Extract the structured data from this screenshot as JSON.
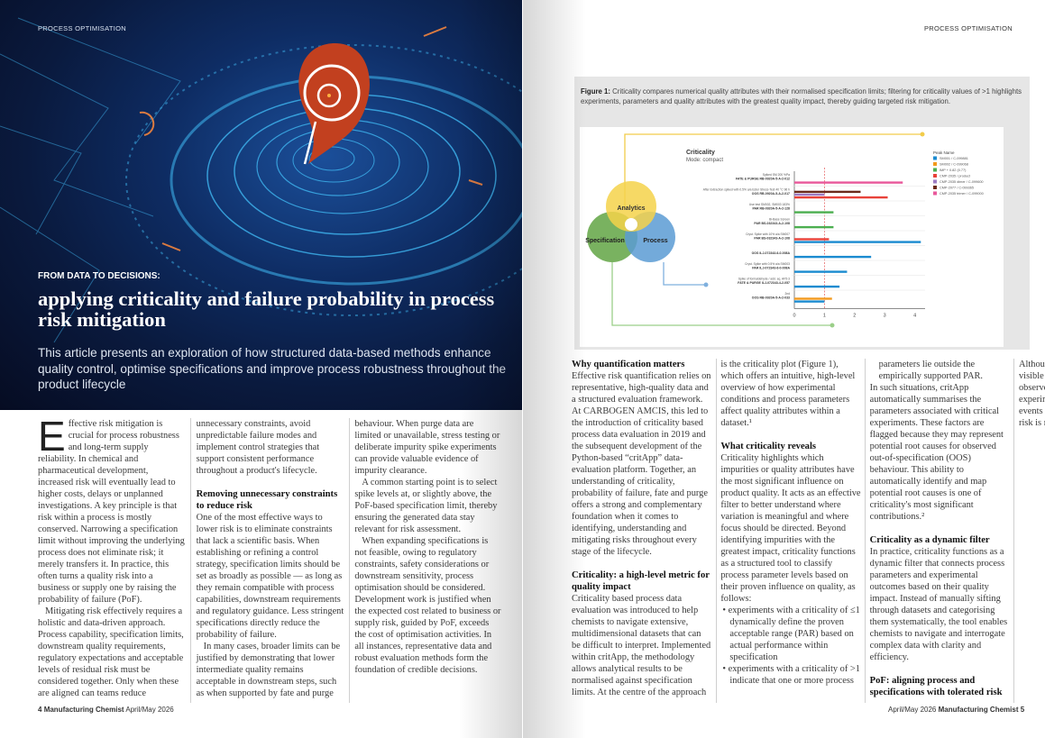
{
  "left_page": {
    "section": "PROCESS OPTIMISATION",
    "kicker": "FROM DATA TO DECISIONS:",
    "title": "applying criticality and failure probability in process risk mitigation",
    "standfirst": "This article presents an exploration of how structured data-based methods enhance quality control, optimise specifications and improve process robustness throughout the product lifecycle",
    "drop_cap": "E",
    "blocks": [
      {
        "t": "p",
        "text": "ffective risk mitigation is crucial for process robustness and long-term supply reliability. In chemical and pharmaceutical development, increased risk will eventually lead to higher costs, delays or unplanned investigations. A key principle is that risk within a process is mostly conserved. Narrowing a specification limit without improving the underlying process does not eliminate risk; it merely transfers it. In practice, this often turns a quality risk into a business or supply one by raising the probability of failure (PoF)."
      },
      {
        "t": "p",
        "text": "Mitigating risk effectively requires a holistic and data-driven approach. Process capability, specification limits, downstream quality requirements, regulatory expectations and acceptable levels of residual risk must be considered together. Only when these are aligned can teams reduce unnecessary constraints, avoid unpredictable failure modes and implement control strategies that support consistent performance throughout a product's lifecycle."
      },
      {
        "t": "h",
        "text": "Removing unnecessary constraints to reduce risk"
      },
      {
        "t": "p",
        "text": "One of the most effective ways to lower risk is to eliminate constraints that lack a scientific basis. When establishing or refining a control strategy, specification limits should be set as broadly as possible — as long as they remain compatible with process capabilities, downstream requirements and regulatory guidance. Less stringent specifications directly reduce the probability of failure."
      },
      {
        "t": "p",
        "text": "In many cases, broader limits can be justified by demonstrating that lower intermediate quality remains acceptable in downstream steps, such as when supported by fate and purge behaviour. When purge data are limited or unavailable, stress testing or deliberate impurity spike experiments can provide valuable evidence of impurity clearance."
      },
      {
        "t": "p",
        "text": "A common starting point is to select spike levels at, or slightly above, the PoF-based specification limit, thereby ensuring the generated data stay relevant for risk assessment."
      },
      {
        "t": "p",
        "text": "When expanding specifications is not feasible, owing to regulatory constraints, safety considerations or downstream sensitivity, process optimisation should be considered. Development work is justified when the expected cost related to business or supply risk, guided by PoF, exceeds the cost of optimisation activities. In all instances, representative data and robust evaluation methods form the foundation of credible decisions."
      }
    ],
    "footer": {
      "page": "4",
      "magazine": "Manufacturing Chemist",
      "issue": "April/May 2026"
    }
  },
  "right_page": {
    "section": "PROCESS OPTIMISATION",
    "figure": {
      "label": "Figure 1:",
      "caption": "Criticality compares numerical quality attributes with their normalised specification limits; filtering for criticality values of >1 highlights experiments, parameters and quality attributes with the greatest quality impact, thereby guiding targeted risk mitigation.",
      "venn": {
        "top": "Analytics",
        "left": "Specification",
        "right": "Process",
        "colors": {
          "top": "#f5d24a",
          "left": "#6aaa4f",
          "right": "#5b9bd3"
        }
      }
    },
    "blocks": [
      {
        "t": "h",
        "text": "Why quantification matters"
      },
      {
        "t": "p",
        "text": "Effective risk quantification relies on representative, high-quality data and a structured evaluation framework. At CARBOGEN AMCIS, this led to the introduction of criticality based process data evaluation in 2019 and the subsequent development of the Python-based “critApp” data-evaluation platform. Together, an understanding of criticality, probability of failure, fate and purge offers a strong and complementary foundation when it comes to identifying, understanding and mitigating risks throughout every stage of the lifecycle."
      },
      {
        "t": "h",
        "text": "Criticality: a high-level metric for quality impact"
      },
      {
        "t": "p",
        "text": "Criticality based process data evaluation was introduced to help chemists to navigate extensive, multidimensional datasets that can be difficult to interpret. Implemented within critApp, the methodology allows analytical results to be normalised against specification limits. At the centre of the approach is the criticality plot (Figure 1), which offers an intuitive, high-level overview of how experimental conditions and process parameters affect quality attributes within a dataset.¹"
      },
      {
        "t": "h",
        "text": "What criticality reveals"
      },
      {
        "t": "p",
        "text": "Criticality highlights which impurities or quality attributes have the most significant influence on product quality. It acts as an effective filter to better understand where variation is meaningful and where focus should be directed. Beyond identifying impurities with the greatest impact, criticality functions as a structured tool to classify process parameter levels based on their proven influence on quality, as follows:"
      },
      {
        "t": "li",
        "text": "experiments with a criticality of ≤1 dynamically define the proven acceptable range (PAR) based on actual performance within specification"
      },
      {
        "t": "li",
        "text": "experiments with a criticality of >1 indicate that one or more process parameters lie outside the empirically supported PAR."
      },
      {
        "t": "p0",
        "text": "In such situations, critApp automatically summarises the parameters associated with critical experiments. These factors are flagged because they may represent potential root causes for observed out-of-specification (OOS) behaviour. This ability to automatically identify and map potential root causes is one of criticality's most significant contributions.²"
      },
      {
        "t": "h",
        "text": "Criticality as a dynamic filter"
      },
      {
        "t": "p",
        "text": "In practice, criticality functions as a dynamic filter that connects process parameters and experimental outcomes based on their quality impact. Instead of manually sifting through datasets and categorising them systematically, the tool enables chemists to navigate and interrogate complex data with clarity and efficiency."
      },
      {
        "t": "h",
        "text": "PoF: aligning process and specifications with tolerated risk"
      },
      {
        "t": "p",
        "text": "Although criticality emphasises visible quality risks based on observed critical or OOS experiments, the absence of such events does not imply that residual risk is non-existent. Some"
      }
    ],
    "footer": {
      "page": "5",
      "magazine": "Manufacturing Chemist",
      "issue": "April/May 2026"
    }
  },
  "chart_data": {
    "type": "bar",
    "orientation": "horizontal",
    "title": "Criticality",
    "subtitle": "Mode: compact",
    "xlim": [
      0,
      4.3
    ],
    "xticks": [
      "0",
      "1",
      "2",
      "3",
      "4"
    ],
    "reference_line": 1,
    "legend_title": "Peak Name",
    "legend_position": "top-right",
    "series": [
      {
        "name": "SM001 / C-099881",
        "color": "#1b8bd0"
      },
      {
        "name": "SM002 / C-099068",
        "color": "#f39a1e"
      },
      {
        "name": "IMP + 0.82 (0.77)",
        "color": "#4caf50"
      },
      {
        "name": "CMP-2035 / product",
        "color": "#e8423a"
      },
      {
        "name": "CMP-2035 dimer / C-099600",
        "color": "#9c7cc4"
      },
      {
        "name": "CMP-2077 / C-099365",
        "color": "#6b2a1a"
      },
      {
        "name": "CMP-2035 trimer / C-099000",
        "color": "#e9589b"
      }
    ],
    "categories": [
      {
        "desc": "Spiked SM 200 %Pa",
        "id": "FATE & PURGE RB-0920A-5-A-2-012",
        "bars": [
          {
            "s": 6,
            "v": 3.6
          }
        ]
      },
      {
        "desc": "After Extraction spiked with 0.5% a/a Ester Stress-Test 40 °C 96 h",
        "id": "OOS RB-0920A-5-A-2-017",
        "bars": [
          {
            "s": 5,
            "v": 2.2
          },
          {
            "s": 4,
            "v": 1.0
          },
          {
            "s": 3,
            "v": 3.1
          }
        ]
      },
      {
        "desc": "Use test SM002, SM003 183%",
        "id": "PAR RB-0920A-5-A-2-128",
        "bars": [
          {
            "s": 2,
            "v": 1.3
          }
        ]
      },
      {
        "desc": "Bi-Base Screen",
        "id": "PAR BS-032343-A-2-108",
        "bars": [
          {
            "s": 2,
            "v": 1.3
          }
        ]
      },
      {
        "desc": "Cryst. Spike with 10% a/a SM007",
        "id": "PAR BS-032343-A-2-108",
        "bars": [
          {
            "s": 3,
            "v": 1.15
          },
          {
            "s": 0,
            "v": 4.2
          }
        ]
      },
      {
        "desc": "",
        "id": "OOS ILJ-072343-6-0-008A",
        "bars": [
          {
            "s": 0,
            "v": 2.55
          }
        ]
      },
      {
        "desc": "Cryst. Spike with 0.5% a/a SM003",
        "id": "PAR ILJ-072343-6-0-008A",
        "bars": [
          {
            "s": 0,
            "v": 1.75
          }
        ]
      },
      {
        "desc": "Spike of formaldehyde / add. eq. AF5-3",
        "id": "FATE & PURGE ILJ-072343-4-2-057",
        "bars": [
          {
            "s": 0,
            "v": 1.5
          }
        ]
      },
      {
        "desc": "2nd",
        "id": "OOS RB-0920A-5-A-2-033",
        "bars": [
          {
            "s": 1,
            "v": 1.25
          },
          {
            "s": 0,
            "v": 1.0
          }
        ]
      }
    ]
  }
}
